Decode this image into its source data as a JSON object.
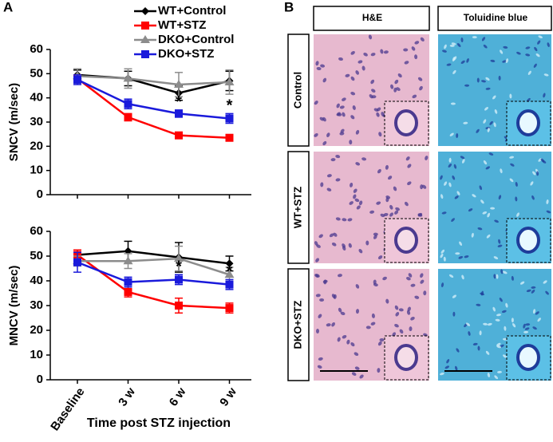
{
  "panel_a": {
    "label": "A"
  },
  "panel_b": {
    "label": "B",
    "columns": [
      "H&E",
      "Toluidine blue"
    ],
    "rows": [
      "Control",
      "WT+STZ",
      "DKO+STZ"
    ]
  },
  "chart_data": [
    {
      "type": "line",
      "y_label": "SNCV (m/sec)",
      "categories": [
        "Baseline",
        "3 w",
        "6 w",
        "9 w"
      ],
      "ylim": [
        0,
        60
      ],
      "yticks": [
        0,
        10,
        20,
        30,
        40,
        50,
        60
      ],
      "series": [
        {
          "name": "WT+Control",
          "color": "#000000",
          "marker": "diamond",
          "values": [
            49.5,
            48,
            42,
            47
          ],
          "errors": [
            2,
            3,
            3,
            4
          ]
        },
        {
          "name": "WT+STZ",
          "color": "#ff0000",
          "marker": "square",
          "values": [
            48,
            32,
            24.5,
            23.5
          ],
          "errors": [
            1.5,
            1.5,
            1,
            1
          ]
        },
        {
          "name": "DKO+Control",
          "color": "#8c8c8c",
          "marker": "triangle",
          "values": [
            49,
            48,
            45.5,
            46.5
          ],
          "errors": [
            3,
            4,
            5,
            5
          ]
        },
        {
          "name": "DKO+STZ",
          "color": "#1a1adb",
          "marker": "square",
          "values": [
            47.5,
            37.5,
            33.5,
            31.5
          ],
          "errors": [
            2,
            2,
            1.5,
            2
          ]
        }
      ],
      "annotations": [
        {
          "text": "*",
          "x": "6 w"
        },
        {
          "text": "*",
          "x": "9 w"
        }
      ]
    },
    {
      "type": "line",
      "y_label": "MNCV (m/sec)",
      "x_label": "Time post STZ injection",
      "categories": [
        "Baseline",
        "3 w",
        "6 w",
        "9 w"
      ],
      "ylim": [
        0,
        60
      ],
      "yticks": [
        0,
        10,
        20,
        30,
        40,
        50,
        60
      ],
      "series": [
        {
          "name": "WT+Control",
          "color": "#000000",
          "marker": "diamond",
          "values": [
            50.5,
            52,
            49.5,
            47
          ],
          "errors": [
            2,
            4,
            6,
            3
          ]
        },
        {
          "name": "WT+STZ",
          "color": "#ff0000",
          "marker": "square",
          "values": [
            50.5,
            35.5,
            30,
            29
          ],
          "errors": [
            2,
            2,
            3,
            2
          ]
        },
        {
          "name": "DKO+Control",
          "color": "#8c8c8c",
          "marker": "triangle",
          "values": [
            48,
            48,
            49,
            42.5
          ],
          "errors": [
            2,
            3,
            5,
            3
          ]
        },
        {
          "name": "DKO+STZ",
          "color": "#1a1adb",
          "marker": "square",
          "values": [
            47.5,
            39.5,
            40.5,
            38.5
          ],
          "errors": [
            4,
            2,
            2,
            2
          ]
        }
      ],
      "annotations": [
        {
          "text": "*",
          "x": "6 w"
        },
        {
          "text": "*",
          "x": "9 w"
        }
      ]
    }
  ]
}
